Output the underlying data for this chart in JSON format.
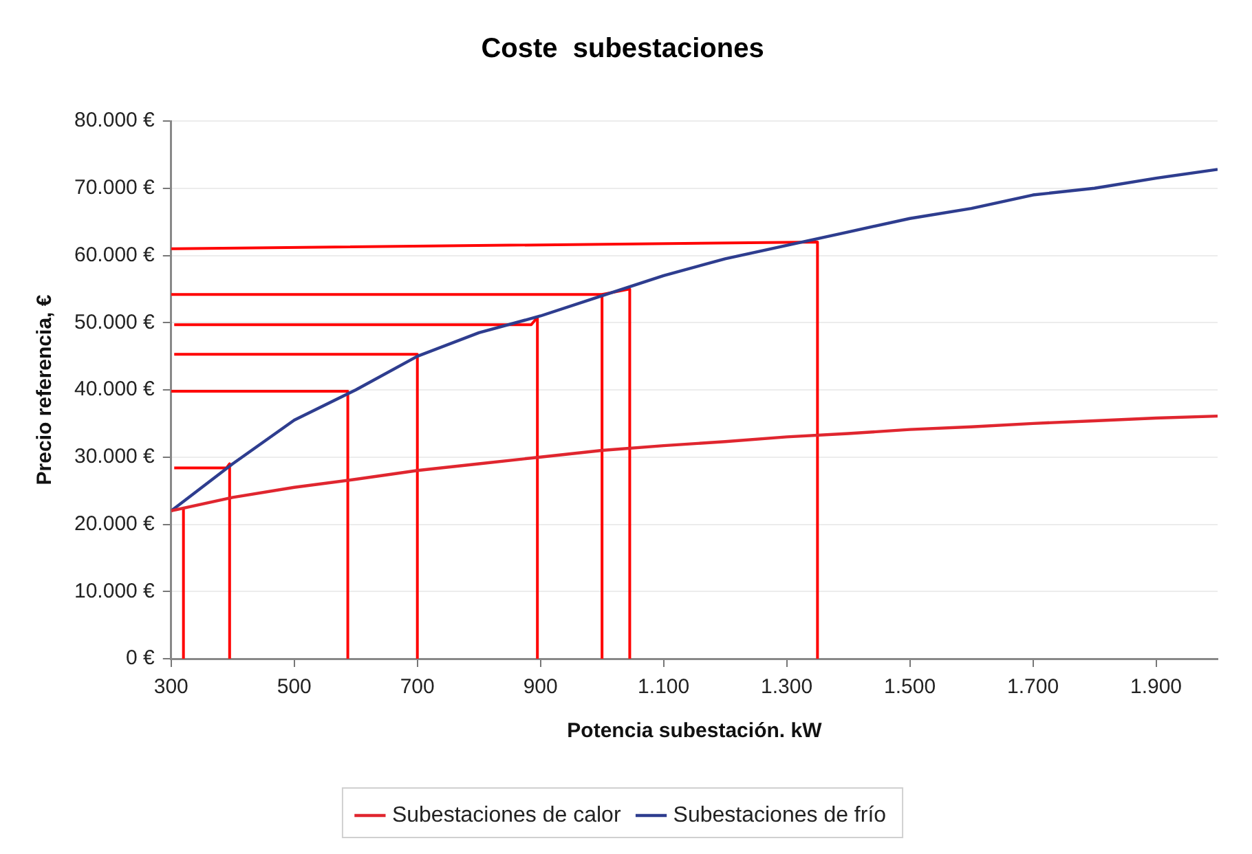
{
  "chart_data": {
    "type": "line",
    "title": "Coste  subestaciones",
    "xlabel": "Potencia subestación. kW",
    "ylabel": "Precio referencia, €",
    "xlim": [
      300,
      2000
    ],
    "xticks": [
      300,
      500,
      700,
      900,
      {
        "value": 1100,
        "label": "1.100"
      },
      {
        "value": 1300,
        "label": "1.300"
      },
      {
        "value": 1500,
        "label": "1.500"
      },
      {
        "value": 1700,
        "label": "1.700"
      },
      {
        "value": 1900,
        "label": "1.900"
      }
    ],
    "ylim": [
      0,
      80000
    ],
    "yticks": [
      {
        "value": 0,
        "label": "0 €"
      },
      {
        "value": 10000,
        "label": "10.000 €"
      },
      {
        "value": 20000,
        "label": "20.000 €"
      },
      {
        "value": 30000,
        "label": "30.000 €"
      },
      {
        "value": 40000,
        "label": "40.000 €"
      },
      {
        "value": 50000,
        "label": "50.000 €"
      },
      {
        "value": 60000,
        "label": "60.000 €"
      },
      {
        "value": 70000,
        "label": "70.000 €"
      },
      {
        "value": 80000,
        "label": "80.000 €"
      }
    ],
    "grid": "y",
    "legend": "bottom",
    "marker": "none",
    "line_style": "solid",
    "series": [
      {
        "name": "Subestaciones de calor",
        "color": "#e0262f",
        "x": [
          300,
          400,
          500,
          600,
          700,
          800,
          900,
          1000,
          1100,
          1200,
          1300,
          1400,
          1500,
          1600,
          1700,
          1800,
          1900,
          2000
        ],
        "values": [
          22000,
          24000,
          25500,
          26700,
          28000,
          29000,
          30000,
          31000,
          31700,
          32300,
          33000,
          33500,
          34100,
          34500,
          35000,
          35400,
          35800,
          36100
        ]
      },
      {
        "name": "Subestaciones de frío",
        "color": "#2e3d8f",
        "x": [
          300,
          400,
          500,
          600,
          700,
          800,
          900,
          1000,
          1100,
          1200,
          1300,
          1400,
          1500,
          1600,
          1700,
          1800,
          1900,
          2000
        ],
        "values": [
          22000,
          29000,
          35500,
          40000,
          45000,
          48500,
          51000,
          54000,
          57000,
          59500,
          61500,
          63500,
          65500,
          67000,
          69000,
          70000,
          71500,
          72800
        ]
      },
      {
        "color": "#ff0000",
        "x": [
          320,
          320
        ],
        "values": [
          22400,
          0
        ]
      },
      {
        "color": "#ff0000",
        "x": [
          305,
          390,
          395,
          395
        ],
        "values": [
          28400,
          28400,
          29000,
          0
        ]
      },
      {
        "color": "#ff0000",
        "x": [
          300,
          587,
          587
        ],
        "values": [
          39800,
          39800,
          0
        ]
      },
      {
        "color": "#ff0000",
        "x": [
          305,
          700,
          700
        ],
        "values": [
          45300,
          45300,
          0
        ]
      },
      {
        "color": "#ff0000",
        "x": [
          305,
          885,
          895,
          895
        ],
        "values": [
          49700,
          49700,
          50800,
          0
        ]
      },
      {
        "color": "#ff0000",
        "x": [
          300,
          1000,
          1000
        ],
        "values": [
          54200,
          54200,
          0
        ]
      },
      {
        "color": "#ff0000",
        "x": [
          1000,
          1045,
          1045
        ],
        "values": [
          54200,
          55000,
          0
        ]
      },
      {
        "color": "#ff0000",
        "x": [
          300,
          1350,
          1350
        ],
        "values": [
          61000,
          62000,
          0
        ]
      }
    ]
  }
}
